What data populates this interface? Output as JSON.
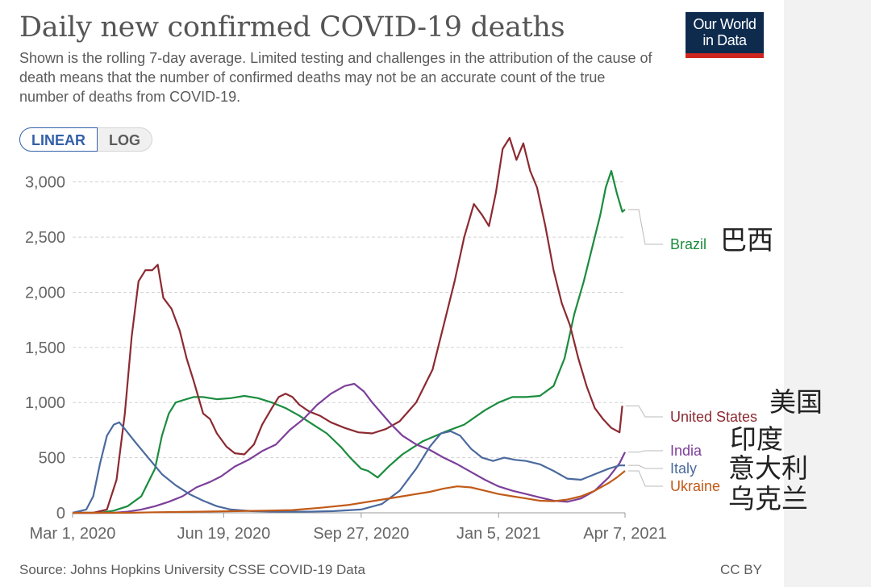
{
  "header": {
    "title": "Daily new confirmed COVID-19 deaths",
    "subtitle": "Shown is the rolling 7-day average. Limited testing and challenges in the attribution of the cause of death means that the number of confirmed deaths may not be an accurate count of the true number of deaths from COVID-19.",
    "logo_line1": "Our World",
    "logo_line2": "in Data"
  },
  "toggle": {
    "linear_label": "LINEAR",
    "log_label": "LOG",
    "selected": "LINEAR"
  },
  "footer": {
    "source": "Source: Johns Hopkins University CSSE COVID-19 Data",
    "license": "CC BY"
  },
  "annotations": {
    "brazil_cn": "巴西",
    "us_cn": "美国",
    "india_cn": "印度",
    "italy_cn": "意大利",
    "ukraine_cn": "乌克兰"
  },
  "chart_data": {
    "type": "line",
    "title": "Daily new confirmed COVID-19 deaths",
    "xlabel": "",
    "ylabel": "",
    "ylim": [
      0,
      3100
    ],
    "yticks": [
      0,
      500,
      1000,
      1500,
      2000,
      2500,
      3000
    ],
    "ytick_labels": [
      "0",
      "500",
      "1,000",
      "1,500",
      "2,000",
      "2,500",
      "3,000"
    ],
    "xlim": [
      0,
      402
    ],
    "xticks": [
      0,
      110,
      210,
      310,
      402
    ],
    "xtick_labels": [
      "Mar 1, 2020",
      "Jun 19, 2020",
      "Sep 27, 2020",
      "Jan 5, 2021",
      "Apr 7, 2021"
    ],
    "grid": "horizontal dashed",
    "series": [
      {
        "name": "Brazil",
        "color": "#1b8c3e",
        "points": [
          [
            0,
            0
          ],
          [
            20,
            0
          ],
          [
            30,
            20
          ],
          [
            40,
            60
          ],
          [
            50,
            150
          ],
          [
            60,
            400
          ],
          [
            65,
            700
          ],
          [
            70,
            900
          ],
          [
            75,
            1000
          ],
          [
            80,
            1020
          ],
          [
            88,
            1050
          ],
          [
            95,
            1050
          ],
          [
            105,
            1030
          ],
          [
            115,
            1040
          ],
          [
            125,
            1060
          ],
          [
            135,
            1040
          ],
          [
            145,
            1000
          ],
          [
            155,
            950
          ],
          [
            165,
            880
          ],
          [
            175,
            800
          ],
          [
            185,
            720
          ],
          [
            195,
            600
          ],
          [
            202,
            500
          ],
          [
            210,
            400
          ],
          [
            215,
            380
          ],
          [
            222,
            320
          ],
          [
            230,
            420
          ],
          [
            240,
            530
          ],
          [
            255,
            650
          ],
          [
            270,
            730
          ],
          [
            285,
            800
          ],
          [
            300,
            930
          ],
          [
            310,
            1000
          ],
          [
            320,
            1050
          ],
          [
            330,
            1050
          ],
          [
            340,
            1060
          ],
          [
            350,
            1150
          ],
          [
            358,
            1400
          ],
          [
            365,
            1800
          ],
          [
            372,
            2100
          ],
          [
            378,
            2400
          ],
          [
            384,
            2700
          ],
          [
            388,
            2950
          ],
          [
            392,
            3100
          ],
          [
            396,
            2900
          ],
          [
            400,
            2730
          ],
          [
            402,
            2750
          ]
        ]
      },
      {
        "name": "United States",
        "color": "#8c2a31",
        "points": [
          [
            0,
            0
          ],
          [
            15,
            0
          ],
          [
            25,
            30
          ],
          [
            32,
            300
          ],
          [
            38,
            900
          ],
          [
            43,
            1600
          ],
          [
            48,
            2100
          ],
          [
            53,
            2200
          ],
          [
            58,
            2200
          ],
          [
            62,
            2250
          ],
          [
            66,
            1950
          ],
          [
            72,
            1850
          ],
          [
            78,
            1650
          ],
          [
            83,
            1400
          ],
          [
            88,
            1200
          ],
          [
            95,
            900
          ],
          [
            100,
            850
          ],
          [
            105,
            720
          ],
          [
            112,
            600
          ],
          [
            118,
            540
          ],
          [
            125,
            530
          ],
          [
            132,
            620
          ],
          [
            138,
            800
          ],
          [
            145,
            950
          ],
          [
            150,
            1050
          ],
          [
            155,
            1080
          ],
          [
            160,
            1050
          ],
          [
            165,
            980
          ],
          [
            172,
            920
          ],
          [
            180,
            880
          ],
          [
            188,
            820
          ],
          [
            198,
            770
          ],
          [
            208,
            730
          ],
          [
            218,
            720
          ],
          [
            228,
            760
          ],
          [
            238,
            830
          ],
          [
            250,
            1000
          ],
          [
            262,
            1300
          ],
          [
            270,
            1700
          ],
          [
            278,
            2100
          ],
          [
            285,
            2500
          ],
          [
            292,
            2800
          ],
          [
            298,
            2700
          ],
          [
            303,
            2600
          ],
          [
            308,
            2900
          ],
          [
            313,
            3300
          ],
          [
            318,
            3400
          ],
          [
            323,
            3200
          ],
          [
            328,
            3350
          ],
          [
            333,
            3100
          ],
          [
            338,
            2950
          ],
          [
            344,
            2600
          ],
          [
            350,
            2200
          ],
          [
            356,
            1900
          ],
          [
            362,
            1700
          ],
          [
            368,
            1400
          ],
          [
            374,
            1150
          ],
          [
            380,
            950
          ],
          [
            386,
            850
          ],
          [
            392,
            770
          ],
          [
            398,
            730
          ],
          [
            400,
            970
          ]
        ]
      },
      {
        "name": "India",
        "color": "#7c3f99",
        "points": [
          [
            0,
            0
          ],
          [
            30,
            0
          ],
          [
            40,
            10
          ],
          [
            50,
            30
          ],
          [
            60,
            60
          ],
          [
            70,
            100
          ],
          [
            80,
            150
          ],
          [
            90,
            230
          ],
          [
            100,
            280
          ],
          [
            108,
            330
          ],
          [
            118,
            420
          ],
          [
            128,
            480
          ],
          [
            138,
            560
          ],
          [
            148,
            620
          ],
          [
            158,
            750
          ],
          [
            168,
            850
          ],
          [
            178,
            980
          ],
          [
            188,
            1080
          ],
          [
            198,
            1150
          ],
          [
            205,
            1170
          ],
          [
            212,
            1100
          ],
          [
            218,
            1000
          ],
          [
            225,
            900
          ],
          [
            232,
            800
          ],
          [
            240,
            700
          ],
          [
            250,
            620
          ],
          [
            260,
            570
          ],
          [
            270,
            500
          ],
          [
            280,
            440
          ],
          [
            290,
            370
          ],
          [
            300,
            300
          ],
          [
            310,
            240
          ],
          [
            320,
            200
          ],
          [
            330,
            170
          ],
          [
            340,
            140
          ],
          [
            350,
            110
          ],
          [
            360,
            100
          ],
          [
            370,
            130
          ],
          [
            380,
            200
          ],
          [
            390,
            320
          ],
          [
            398,
            450
          ],
          [
            402,
            550
          ]
        ]
      },
      {
        "name": "Italy",
        "color": "#4b6a9e",
        "points": [
          [
            0,
            0
          ],
          [
            10,
            30
          ],
          [
            15,
            150
          ],
          [
            20,
            450
          ],
          [
            25,
            700
          ],
          [
            30,
            800
          ],
          [
            34,
            820
          ],
          [
            38,
            760
          ],
          [
            45,
            650
          ],
          [
            55,
            500
          ],
          [
            65,
            350
          ],
          [
            75,
            250
          ],
          [
            85,
            170
          ],
          [
            95,
            110
          ],
          [
            105,
            60
          ],
          [
            115,
            30
          ],
          [
            130,
            15
          ],
          [
            150,
            10
          ],
          [
            170,
            10
          ],
          [
            190,
            15
          ],
          [
            210,
            30
          ],
          [
            225,
            80
          ],
          [
            238,
            200
          ],
          [
            250,
            400
          ],
          [
            260,
            600
          ],
          [
            268,
            720
          ],
          [
            275,
            740
          ],
          [
            282,
            700
          ],
          [
            290,
            580
          ],
          [
            298,
            500
          ],
          [
            306,
            470
          ],
          [
            314,
            500
          ],
          [
            322,
            480
          ],
          [
            330,
            470
          ],
          [
            340,
            440
          ],
          [
            350,
            380
          ],
          [
            360,
            310
          ],
          [
            370,
            300
          ],
          [
            380,
            350
          ],
          [
            390,
            400
          ],
          [
            398,
            430
          ],
          [
            402,
            430
          ]
        ]
      },
      {
        "name": "Ukraine",
        "color": "#c15a18",
        "points": [
          [
            0,
            0
          ],
          [
            40,
            0
          ],
          [
            60,
            5
          ],
          [
            80,
            8
          ],
          [
            100,
            12
          ],
          [
            120,
            15
          ],
          [
            140,
            20
          ],
          [
            160,
            25
          ],
          [
            180,
            45
          ],
          [
            200,
            70
          ],
          [
            220,
            110
          ],
          [
            240,
            150
          ],
          [
            260,
            190
          ],
          [
            270,
            220
          ],
          [
            280,
            240
          ],
          [
            290,
            230
          ],
          [
            300,
            200
          ],
          [
            310,
            170
          ],
          [
            320,
            150
          ],
          [
            330,
            130
          ],
          [
            340,
            110
          ],
          [
            350,
            105
          ],
          [
            360,
            120
          ],
          [
            370,
            150
          ],
          [
            380,
            200
          ],
          [
            390,
            270
          ],
          [
            396,
            320
          ],
          [
            402,
            380
          ]
        ]
      }
    ]
  }
}
